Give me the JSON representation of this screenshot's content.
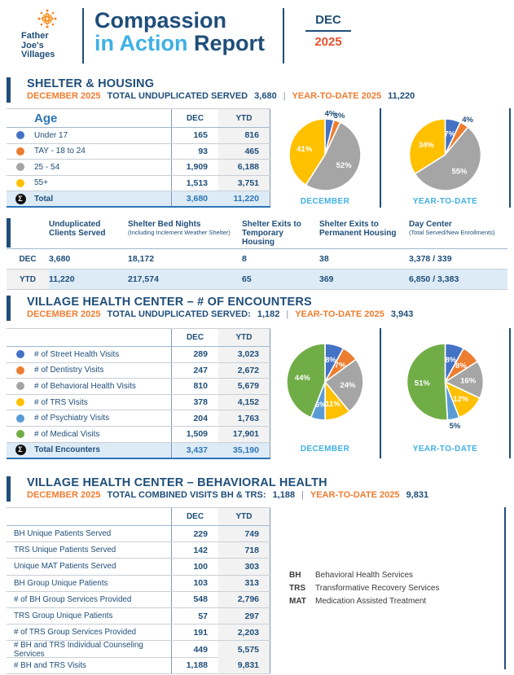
{
  "header": {
    "logo": {
      "line1": "Father",
      "line2": "Joe's",
      "line3": "Villages"
    },
    "title_word1": "Compassion",
    "title_word2": "in Action",
    "title_word3": " Report",
    "month": "DEC",
    "year": "2025"
  },
  "colors": {
    "navy": "#1F4E79",
    "bright_blue": "#2E75B6",
    "light_blue": "#3FB0E5",
    "orange": "#ED7D31",
    "year_orange": "#E8502E",
    "total_row_bg": "#DDEBF7",
    "ytd_col_bg": "#F2F2F2"
  },
  "shelter": {
    "title": "SHELTER & HOUSING",
    "subtitle": {
      "month": "DECEMBER 2025",
      "text": "TOTAL UNDUPLICATED SERVED",
      "value": "3,680",
      "sep": "|",
      "ytd": "YEAR-TO-DATE 2025",
      "ytd_value": "11,220"
    },
    "age_table": {
      "header": {
        "label": "Age",
        "dec": "DEC",
        "ytd": "YTD"
      },
      "rows": [
        {
          "color": "#4472C4",
          "label": "Under 17",
          "dec": "165",
          "ytd": "816"
        },
        {
          "color": "#ED7D31",
          "label": "TAY - 18 to 24",
          "dec": "93",
          "ytd": "465"
        },
        {
          "color": "#A5A5A5",
          "label": "25 - 54",
          "dec": "1,909",
          "ytd": "6,188"
        },
        {
          "color": "#FFC000",
          "label": "55+",
          "dec": "1,513",
          "ytd": "3,751"
        }
      ],
      "total": {
        "sigma": "Σ",
        "label": "Total",
        "dec": "3,680",
        "ytd": "11,220"
      }
    }
  },
  "metrics_table": {
    "columns": [
      {
        "title": "Unduplicated Clients Served",
        "sub": ""
      },
      {
        "title": "Shelter Bed Nights",
        "sub": "(Including Inclement Weather Shelter)"
      },
      {
        "title": "Shelter Exits to Temporary Housing",
        "sub": ""
      },
      {
        "title": "Shelter Exits to Permanent Housing",
        "sub": ""
      },
      {
        "title": "Day Center",
        "sub": "(Total Served/New Enrollments)"
      }
    ],
    "rows": [
      {
        "label": "DEC",
        "v0": "3,680",
        "v1": "18,172",
        "v2": "8",
        "v3": "38",
        "v4": "3,378 / 339"
      },
      {
        "label": "YTD",
        "v0": "11,220",
        "v1": "217,574",
        "v2": "65",
        "v3": "369",
        "v4": "6,850 / 3,383"
      }
    ]
  },
  "health": {
    "title": "VILLAGE HEALTH CENTER – # OF ENCOUNTERS",
    "subtitle": {
      "month": "DECEMBER 2025",
      "text": "TOTAL UNDUPLICATED SERVED:",
      "value": "1,182",
      "sep": "|",
      "ytd": "YEAR-TO-DATE 2025",
      "ytd_value": "3,943"
    },
    "table": {
      "header": {
        "dec": "DEC",
        "ytd": "YTD"
      },
      "rows": [
        {
          "color": "#4472C4",
          "label": "# of Street Health Visits",
          "dec": "289",
          "ytd": "3,023"
        },
        {
          "color": "#ED7D31",
          "label": "# of Dentistry Visits",
          "dec": "247",
          "ytd": "2,672"
        },
        {
          "color": "#A5A5A5",
          "label": "# of Behavioral Health Visits",
          "dec": "810",
          "ytd": "5,679"
        },
        {
          "color": "#FFC000",
          "label": "# of TRS Visits",
          "dec": "378",
          "ytd": "4,152"
        },
        {
          "color": "#5B9BD5",
          "label": "# of Psychiatry Visits",
          "dec": "204",
          "ytd": "1,763"
        },
        {
          "color": "#70AD47",
          "label": "# of Medical Visits",
          "dec": "1,509",
          "ytd": "17,901"
        }
      ],
      "total": {
        "sigma": "Σ",
        "label": "Total Encounters",
        "dec": "3,437",
        "ytd": "35,190"
      }
    }
  },
  "behavioral": {
    "title": "VILLAGE HEALTH CENTER – BEHAVIORAL HEALTH",
    "subtitle": {
      "month": "DECEMBER 2025",
      "text": "TOTAL COMBINED VISITS BH & TRS:",
      "value": "1,188",
      "sep": "|",
      "ytd": "YEAR-TO-DATE 2025",
      "ytd_value": "9,831"
    },
    "table": {
      "header": {
        "dec": "DEC",
        "ytd": "YTD"
      },
      "rows": [
        {
          "label": "BH Unique Patients Served",
          "dec": "229",
          "ytd": "749"
        },
        {
          "label": "TRS Unique Patients Served",
          "dec": "142",
          "ytd": "718"
        },
        {
          "label": "Unique MAT Patients Served",
          "dec": "100",
          "ytd": "303"
        },
        {
          "label": "BH Group Unique Patients",
          "dec": "103",
          "ytd": "313"
        },
        {
          "label": "# of BH Group Services Provided",
          "dec": "548",
          "ytd": "2,796"
        },
        {
          "label": "TRS Group Unique Patients",
          "dec": "57",
          "ytd": "297"
        },
        {
          "label": "# of TRS Group Services Provided",
          "dec": "191",
          "ytd": "2,203"
        },
        {
          "label": "# BH and TRS Individual Counseling Services",
          "dec": "449",
          "ytd": "5,575"
        },
        {
          "label": "# BH and TRS Visits",
          "dec": "1,188",
          "ytd": "9,831"
        }
      ]
    },
    "legend": [
      {
        "abbr": "BH",
        "text": "Behavioral Health Services"
      },
      {
        "abbr": "TRS",
        "text": "Transformative Recovery Services"
      },
      {
        "abbr": "MAT",
        "text": "Medication Assisted Treatment"
      }
    ]
  },
  "chart_data": [
    {
      "type": "pie",
      "title": "Shelter & Housing — December age mix",
      "caption": "DECEMBER",
      "legend_position": "none",
      "slices": [
        {
          "label": "Under 17",
          "pct": 4,
          "color": "#4472C4",
          "label_pos": "out"
        },
        {
          "label": "TAY - 18 to 24",
          "pct": 3,
          "color": "#ED7D31",
          "label_pos": "out"
        },
        {
          "label": "25 - 54",
          "pct": 52,
          "color": "#A5A5A5",
          "label_pos": "in"
        },
        {
          "label": "55+",
          "pct": 41,
          "color": "#FFC000",
          "label_pos": "in"
        }
      ]
    },
    {
      "type": "pie",
      "title": "Shelter & Housing — Year-to-date age mix",
      "caption": "YEAR-TO-DATE",
      "legend_position": "none",
      "slices": [
        {
          "label": "Under 17",
          "pct": 7,
          "color": "#4472C4",
          "label_pos": "in"
        },
        {
          "label": "TAY - 18 to 24",
          "pct": 4,
          "color": "#ED7D31",
          "label_pos": "out"
        },
        {
          "label": "25 - 54",
          "pct": 55,
          "color": "#A5A5A5",
          "label_pos": "in"
        },
        {
          "label": "55+",
          "pct": 34,
          "color": "#FFC000",
          "label_pos": "in"
        }
      ]
    },
    {
      "type": "pie",
      "title": "Village Health Center encounters — December",
      "caption": "DECEMBER",
      "legend_position": "none",
      "slices": [
        {
          "label": "# of Street Health Visits",
          "pct": 8,
          "color": "#4472C4",
          "label_pos": "in"
        },
        {
          "label": "# of Dentistry Visits",
          "pct": 7,
          "color": "#ED7D31",
          "label_pos": "in"
        },
        {
          "label": "# of Behavioral Health Visits",
          "pct": 24,
          "color": "#A5A5A5",
          "label_pos": "in"
        },
        {
          "label": "# of TRS Visits",
          "pct": 11,
          "color": "#FFC000",
          "label_pos": "in"
        },
        {
          "label": "# of Psychiatry Visits",
          "pct": 6,
          "color": "#5B9BD5",
          "label_pos": "in"
        },
        {
          "label": "# of Medical Visits",
          "pct": 44,
          "color": "#70AD47",
          "label_pos": "in"
        }
      ]
    },
    {
      "type": "pie",
      "title": "Village Health Center encounters — Year-to-date",
      "caption": "YEAR-TO-DATE",
      "legend_position": "none",
      "slices": [
        {
          "label": "# of Street Health Visits",
          "pct": 8,
          "color": "#4472C4",
          "label_pos": "in"
        },
        {
          "label": "# of Dentistry Visits",
          "pct": 8,
          "color": "#ED7D31",
          "label_pos": "in"
        },
        {
          "label": "# of Behavioral Health Visits",
          "pct": 16,
          "color": "#A5A5A5",
          "label_pos": "in"
        },
        {
          "label": "# of TRS Visits",
          "pct": 12,
          "color": "#FFC000",
          "label_pos": "in"
        },
        {
          "label": "# of Psychiatry Visits",
          "pct": 5,
          "color": "#5B9BD5",
          "label_pos": "out"
        },
        {
          "label": "# of Medical Visits",
          "pct": 51,
          "color": "#70AD47",
          "label_pos": "in"
        }
      ]
    }
  ]
}
